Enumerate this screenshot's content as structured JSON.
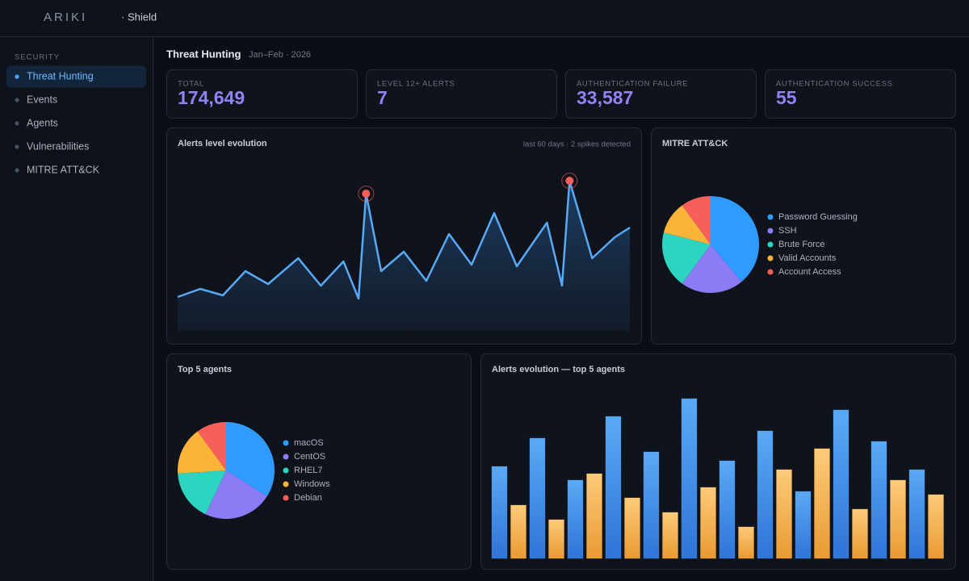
{
  "header": {
    "logo": "ARIKI",
    "product": "· Shield"
  },
  "sidebar": {
    "section": "SECURITY",
    "items": [
      "Threat Hunting",
      "Events",
      "Agents",
      "Vulnerabilities",
      "MITRE ATT&CK"
    ],
    "active": 0
  },
  "page": {
    "title": "Threat Hunting",
    "subtitle": "Jan–Feb · 2026"
  },
  "kpis": [
    {
      "label": "TOTAL",
      "value": "174,649"
    },
    {
      "label": "LEVEL 12+ ALERTS",
      "value": "7"
    },
    {
      "label": "AUTHENTICATION FAILURE",
      "value": "33,587"
    },
    {
      "label": "AUTHENTICATION SUCCESS",
      "value": "55"
    }
  ],
  "chart_data": [
    {
      "type": "line",
      "title": "Alerts level evolution",
      "subtitle": "last 60 days · 2 spikes detected",
      "color": "#5aa9f5",
      "marker_color": "#f7605a",
      "x": [
        0,
        3,
        6,
        9,
        12,
        16,
        19,
        22,
        24,
        25,
        27,
        30,
        33,
        36,
        39,
        42,
        45,
        49,
        51,
        52,
        55,
        58,
        60
      ],
      "values": [
        21,
        26,
        22,
        37,
        29,
        45,
        28,
        43,
        20,
        85,
        37,
        49,
        31,
        60,
        41,
        73,
        40,
        67,
        28,
        93,
        45,
        58,
        64
      ],
      "xlim": [
        0,
        60
      ],
      "ylim": [
        0,
        100
      ]
    },
    {
      "type": "pie",
      "title": "MITRE ATT&CK",
      "categories": [
        "Password Guessing",
        "SSH",
        "Brute Force",
        "Valid Accounts",
        "Account Access"
      ],
      "values": [
        39,
        21,
        19,
        11,
        10
      ],
      "colors": [
        "#2f9bff",
        "#8b7cf6",
        "#2dd4bf",
        "#fbb33a",
        "#f7605a"
      ]
    },
    {
      "type": "pie",
      "title": "Top 5 agents",
      "categories": [
        "macOS",
        "CentOS",
        "RHEL7",
        "Windows",
        "Debian"
      ],
      "values": [
        34,
        23,
        17,
        16,
        10
      ],
      "colors": [
        "#2f9bff",
        "#8b7cf6",
        "#2dd4bf",
        "#fbb33a",
        "#f7605a"
      ]
    },
    {
      "type": "bar",
      "title": "Alerts evolution — top 5 agents",
      "ylim": [
        0,
        200
      ],
      "series": [
        {
          "color": "#4a97f0",
          "values": [
            114,
            149,
            97,
            176,
            132,
            198,
            121,
            158,
            83,
            184,
            145,
            110
          ]
        },
        {
          "color": "#f5b55a",
          "values": [
            66,
            48,
            105,
            75,
            57,
            88,
            39,
            110,
            136,
            61,
            97,
            79
          ]
        }
      ]
    }
  ]
}
